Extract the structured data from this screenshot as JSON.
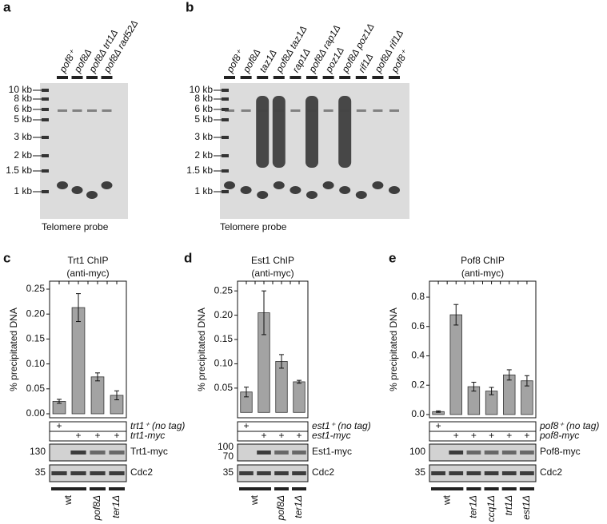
{
  "panel_labels": [
    "a",
    "b",
    "c",
    "d",
    "e"
  ],
  "gel_a": {
    "lanes": [
      "pof8⁺",
      "pof8Δ",
      "pof8Δ trt1Δ",
      "pof8Δ rad52Δ"
    ],
    "markers": [
      "10 kb",
      "8 kb",
      "6 kb",
      "5 kb",
      "3 kb",
      "2 kb",
      "1.5 kb",
      "1 kb"
    ],
    "caption": "Telomere probe"
  },
  "gel_b": {
    "lanes": [
      "pof8⁺",
      "pof8Δ",
      "taz1Δ",
      "pof8Δ taz1Δ",
      "rap1Δ",
      "pof8Δ rap1Δ",
      "poz1Δ",
      "pof8Δ poz1Δ",
      "rif1Δ",
      "pof8Δ rif1Δ",
      "pof8⁺"
    ],
    "markers": [
      "10 kb",
      "8 kb",
      "6 kb",
      "5 kb",
      "3 kb",
      "2 kb",
      "1.5 kb",
      "1 kb"
    ],
    "caption": "Telomere probe"
  },
  "chart_data": [
    {
      "type": "bar",
      "title": "Trt1 ChIP",
      "subtitle": "(anti-myc)",
      "y_label": "% precipitated DNA",
      "categories": [
        null,
        null,
        null,
        null
      ],
      "values": [
        0.025,
        0.213,
        0.074,
        0.037
      ],
      "errors": [
        0.004,
        0.028,
        0.008,
        0.009
      ],
      "color": "#a3a3a3",
      "ylim": [
        -0.008,
        0.266
      ],
      "yticks": [
        {
          "value": 0,
          "label": "0.00"
        },
        0.05,
        {
          "value": 0.1,
          "label": "0.10"
        },
        0.15,
        {
          "value": 0.2,
          "label": "0.20"
        },
        0.25
      ],
      "rows": [
        {
          "label": "trt1⁺ (no tag)",
          "signs": [
            "+",
            null,
            null,
            null
          ]
        },
        {
          "label": "trt1-myc",
          "signs": [
            null,
            "+",
            "+",
            "+"
          ]
        }
      ],
      "blots": [
        {
          "label": "Trt1-myc",
          "sizes": [
            "130"
          ]
        },
        {
          "label": "Cdc2",
          "sizes": [
            "35"
          ]
        }
      ],
      "strains": [
        "wt",
        "pof8Δ",
        "ter1Δ"
      ]
    },
    {
      "type": "bar",
      "title": "Est1 ChIP",
      "subtitle": "(anti-myc)",
      "y_label": "% precipitated DNA",
      "categories": [
        null,
        null,
        null,
        null
      ],
      "values": [
        0.042,
        0.205,
        0.105,
        0.063
      ],
      "errors": [
        0.01,
        0.045,
        0.014,
        0.003
      ],
      "color": "#a3a3a3",
      "ylim": [
        -0.011,
        0.27
      ],
      "yticks": [
        0.05,
        {
          "value": 0.1,
          "label": "0.10"
        },
        0.15,
        {
          "value": 0.2,
          "label": "0.20"
        },
        0.25
      ],
      "rows": [
        {
          "label": "est1⁺ (no tag)",
          "signs": [
            "+",
            null,
            null,
            null
          ]
        },
        {
          "label": "est1-myc",
          "signs": [
            null,
            "+",
            "+",
            "+"
          ]
        }
      ],
      "blots": [
        {
          "label": "Est1-myc",
          "sizes": [
            "100",
            "70"
          ]
        },
        {
          "label": "Cdc2",
          "sizes": [
            "35"
          ]
        }
      ],
      "strains": [
        "wt",
        "pof8Δ",
        "ter1Δ"
      ]
    },
    {
      "type": "bar",
      "title": "Pof8 ChIP",
      "subtitle": "(anti-myc)",
      "y_label": "% precipitated DNA",
      "categories": [
        null,
        null,
        null,
        null,
        null,
        null
      ],
      "values": [
        0.02,
        0.68,
        0.19,
        0.16,
        0.27,
        0.23
      ],
      "errors": [
        0.005,
        0.07,
        0.03,
        0.025,
        0.035,
        0.035
      ],
      "color": "#a3a3a3",
      "ylim": [
        -0.022,
        0.909
      ],
      "yticks": [
        {
          "value": 0,
          "label": "0.0"
        },
        0.2,
        0.4,
        0.6,
        0.8
      ],
      "rows": [
        {
          "label": "pof8⁺ (no tag)",
          "signs": [
            "+",
            null,
            null,
            null,
            null,
            null
          ]
        },
        {
          "label": "pof8-myc",
          "signs": [
            null,
            "+",
            "+",
            "+",
            "+",
            "+"
          ]
        }
      ],
      "blots": [
        {
          "label": "Pof8-myc",
          "sizes": [
            "100"
          ]
        },
        {
          "label": "Cdc2",
          "sizes": [
            "35"
          ]
        }
      ],
      "strains": [
        "wt",
        "ter1Δ",
        "ccq1Δ",
        "trt1Δ",
        "est1Δ"
      ]
    }
  ]
}
